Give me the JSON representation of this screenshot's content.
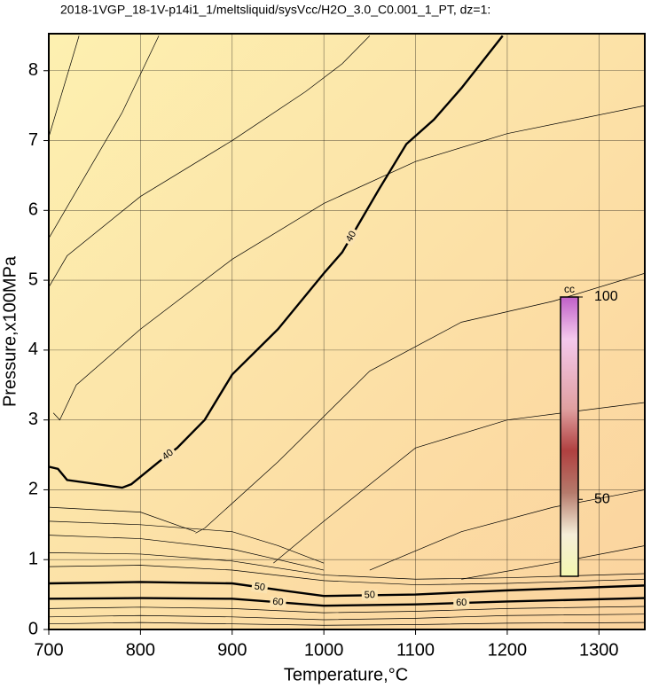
{
  "chart_data": {
    "type": "contour",
    "title": "2018-1VGP_18-1V-p14i1_1/meltsliquid/sysVcc/H2O_3.0_C0.001_1_PT, dz=1:",
    "xlabel": "Temperature,°C",
    "ylabel": "Pressure,x100MPa",
    "xlim": [
      700,
      1350
    ],
    "ylim": [
      0,
      8.53
    ],
    "xticks": [
      700,
      800,
      900,
      1000,
      1100,
      1200,
      1300
    ],
    "yticks": [
      0,
      1,
      2,
      3,
      4,
      5,
      6,
      7,
      8
    ],
    "grid": true,
    "colorbar": {
      "label": "cc",
      "lim": [
        31,
        100
      ],
      "ticks": [
        50,
        100
      ]
    },
    "contours": [
      {
        "level": 40,
        "bold": true,
        "x": [
          700,
          710,
          720,
          780,
          790,
          820,
          840,
          870,
          900,
          950,
          1000,
          1020,
          1040,
          1060,
          1090,
          1120,
          1150,
          1195
        ],
        "y": [
          2.33,
          2.3,
          2.14,
          2.03,
          2.08,
          2.4,
          2.6,
          3.0,
          3.65,
          4.3,
          5.1,
          5.4,
          5.85,
          6.3,
          6.95,
          7.3,
          7.75,
          8.5
        ]
      },
      {
        "level": 50,
        "bold": true,
        "x": [
          700,
          800,
          900,
          960,
          1000,
          1100,
          1200,
          1350
        ],
        "y": [
          0.66,
          0.68,
          0.66,
          0.55,
          0.48,
          0.5,
          0.56,
          0.63
        ]
      },
      {
        "level": 60,
        "bold": true,
        "x": [
          700,
          800,
          900,
          1000,
          1100,
          1200,
          1350
        ],
        "y": [
          0.44,
          0.45,
          0.44,
          0.34,
          0.36,
          0.4,
          0.45
        ]
      },
      {
        "x": [
          700,
          733
        ],
        "y": [
          7.05,
          8.5
        ]
      },
      {
        "x": [
          700,
          740,
          780,
          820
        ],
        "y": [
          5.6,
          6.5,
          7.4,
          8.5
        ]
      },
      {
        "x": [
          700,
          720,
          800,
          900,
          980,
          1020,
          1050
        ],
        "y": [
          4.9,
          5.35,
          6.2,
          7.0,
          7.7,
          8.1,
          8.5
        ]
      },
      {
        "x": [
          705,
          712,
          730,
          800,
          900,
          1000,
          1100,
          1200,
          1350
        ],
        "y": [
          3.1,
          3.0,
          3.5,
          4.3,
          5.3,
          6.1,
          6.7,
          7.1,
          7.5
        ]
      },
      {
        "x": [
          860,
          870,
          950,
          1050,
          1150,
          1250,
          1350
        ],
        "y": [
          1.38,
          1.45,
          2.4,
          3.7,
          4.4,
          4.7,
          5.1
        ]
      },
      {
        "x": [
          945,
          1000,
          1100,
          1200,
          1350
        ],
        "y": [
          0.95,
          1.55,
          2.6,
          3.0,
          3.25
        ]
      },
      {
        "x": [
          1050,
          1150,
          1250,
          1350
        ],
        "y": [
          0.85,
          1.4,
          1.75,
          2.0
        ]
      },
      {
        "x": [
          1150,
          1250,
          1350
        ],
        "y": [
          0.72,
          0.95,
          1.2
        ]
      },
      {
        "x": [
          700,
          800,
          860
        ],
        "y": [
          1.75,
          1.68,
          1.4
        ]
      },
      {
        "x": [
          700,
          800,
          900,
          950,
          1000
        ],
        "y": [
          1.55,
          1.5,
          1.4,
          1.2,
          0.95
        ]
      },
      {
        "x": [
          700,
          800,
          900,
          950,
          1000
        ],
        "y": [
          1.35,
          1.3,
          1.15,
          1.0,
          0.85
        ]
      },
      {
        "x": [
          700,
          800,
          900,
          1000,
          1100,
          1200,
          1350
        ],
        "y": [
          1.1,
          1.08,
          0.98,
          0.78,
          0.72,
          0.74,
          0.8
        ]
      },
      {
        "x": [
          700,
          800,
          900,
          1000,
          1100,
          1200,
          1350
        ],
        "y": [
          0.9,
          0.92,
          0.85,
          0.7,
          0.64,
          0.66,
          0.72
        ]
      },
      {
        "x": [
          700,
          800,
          900,
          1000,
          1100,
          1200,
          1350
        ],
        "y": [
          0.3,
          0.32,
          0.3,
          0.24,
          0.26,
          0.3,
          0.33
        ]
      },
      {
        "x": [
          700,
          800,
          900,
          1000,
          1100,
          1200,
          1350
        ],
        "y": [
          0.18,
          0.2,
          0.18,
          0.14,
          0.16,
          0.2,
          0.22
        ]
      },
      {
        "x": [
          700,
          800,
          900,
          1000,
          1100,
          1200,
          1350
        ],
        "y": [
          0.08,
          0.1,
          0.08,
          0.06,
          0.07,
          0.09,
          0.1
        ]
      }
    ]
  }
}
